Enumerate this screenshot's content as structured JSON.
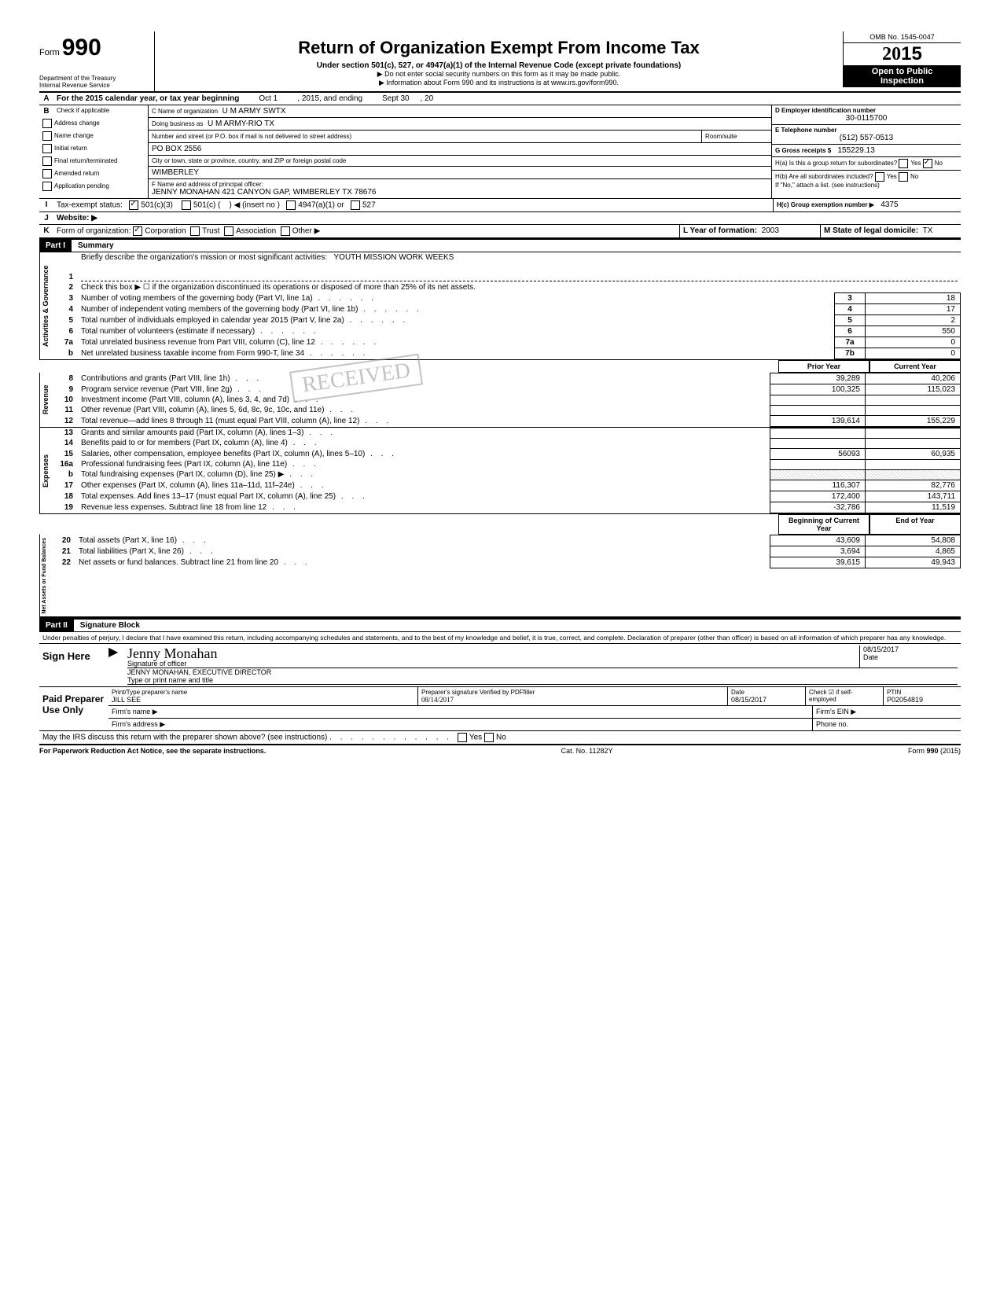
{
  "header": {
    "form_label": "Form",
    "form_number": "990",
    "dept1": "Department of the Treasury",
    "dept2": "Internal Revenue Service",
    "title": "Return of Organization Exempt From Income Tax",
    "subtitle": "Under section 501(c), 527, or 4947(a)(1) of the Internal Revenue Code (except private foundations)",
    "note1": "▶ Do not enter social security numbers on this form as it may be made public.",
    "note2": "▶ Information about Form 990 and its instructions is at www.irs.gov/form990.",
    "omb": "OMB No. 1545-0047",
    "year": "2015",
    "open1": "Open to Public",
    "open2": "Inspection"
  },
  "rowA": {
    "text": "For the 2015 calendar year, or tax year beginning",
    "begin": "Oct 1",
    "mid": ", 2015, and ending",
    "end": "Sept 30",
    "tail": ", 20"
  },
  "rowB": {
    "label": "Check if applicable",
    "items": [
      "Address change",
      "Name change",
      "Initial return",
      "Final return/terminated",
      "Amended return",
      "Application pending"
    ]
  },
  "rowC": {
    "label_name": "C Name of organization",
    "name": "U M ARMY SWTX",
    "label_dba": "Doing business as",
    "dba": "U M ARMY-RIO TX",
    "label_addr": "Number and street (or P.O. box if mail is not delivered to street address)",
    "room_label": "Room/suite",
    "addr": "PO BOX 2556",
    "label_city": "City or town, state or province, country, and ZIP or foreign postal code",
    "city": "WIMBERLEY"
  },
  "rowD": {
    "label": "D Employer identification number",
    "value": "30-0115700"
  },
  "rowE": {
    "label": "E Telephone number",
    "value": "(512) 557-0513"
  },
  "rowG": {
    "label": "G Gross receipts $",
    "value": "155229.13"
  },
  "rowF": {
    "label": "F Name and address of principal officer:",
    "value": "JENNY MONAHAN 421 CANYON GAP, WIMBERLEY TX 78676"
  },
  "rowH": {
    "a": "H(a) Is this a group return for subordinates?",
    "b": "H(b) Are all subordinates included?",
    "note": "If \"No,\" attach a list. (see instructions)",
    "c_label": "H(c) Group exemption number ▶",
    "c_value": "4375",
    "yes": "Yes",
    "no": "No"
  },
  "rowI": {
    "label": "Tax-exempt status:",
    "opts": [
      "501(c)(3)",
      "501(c) (",
      "◀ (insert no )",
      "4947(a)(1) or",
      "527"
    ]
  },
  "rowJ": {
    "label": "Website: ▶"
  },
  "rowK": {
    "label": "Form of organization:",
    "opts": [
      "Corporation",
      "Trust",
      "Association",
      "Other ▶"
    ],
    "L_label": "L Year of formation:",
    "L_value": "2003",
    "M_label": "M State of legal domicile:",
    "M_value": "TX"
  },
  "part1": {
    "hdr": "Part I",
    "title": "Summary"
  },
  "gov": {
    "l1_label": "Briefly describe the organization's mission or most significant activities:",
    "l1_value": "YOUTH MISSION WORK WEEKS",
    "l2": "Check this box ▶ ☐ if the organization discontinued its operations or disposed of more than 25% of its net assets.",
    "lines": [
      {
        "n": "3",
        "t": "Number of voting members of the governing body (Part VI, line 1a)",
        "b": "3",
        "v": "18"
      },
      {
        "n": "4",
        "t": "Number of independent voting members of the governing body (Part VI, line 1b)",
        "b": "4",
        "v": "17"
      },
      {
        "n": "5",
        "t": "Total number of individuals employed in calendar year 2015 (Part V, line 2a)",
        "b": "5",
        "v": "2"
      },
      {
        "n": "6",
        "t": "Total number of volunteers (estimate if necessary)",
        "b": "6",
        "v": "550"
      },
      {
        "n": "7a",
        "t": "Total unrelated business revenue from Part VIII, column (C), line 12",
        "b": "7a",
        "v": "0"
      },
      {
        "n": "b",
        "t": "Net unrelated business taxable income from Form 990-T, line 34",
        "b": "7b",
        "v": "0"
      }
    ]
  },
  "cols": {
    "prior": "Prior Year",
    "current": "Current Year",
    "begin": "Beginning of Current Year",
    "end": "End of Year"
  },
  "rev": [
    {
      "n": "8",
      "t": "Contributions and grants (Part VIII, line 1h)",
      "p": "39,289",
      "c": "40,206"
    },
    {
      "n": "9",
      "t": "Program service revenue (Part VIII, line 2g)",
      "p": "100,325",
      "c": "115,023"
    },
    {
      "n": "10",
      "t": "Investment income (Part VIII, column (A), lines 3, 4, and 7d)",
      "p": "",
      "c": ""
    },
    {
      "n": "11",
      "t": "Other revenue (Part VIII, column (A), lines 5, 6d, 8c, 9c, 10c, and 11e)",
      "p": "",
      "c": ""
    },
    {
      "n": "12",
      "t": "Total revenue—add lines 8 through 11 (must equal Part VIII, column (A), line 12)",
      "p": "139,614",
      "c": "155,229"
    }
  ],
  "exp": [
    {
      "n": "13",
      "t": "Grants and similar amounts paid (Part IX, column (A), lines 1–3)",
      "p": "",
      "c": ""
    },
    {
      "n": "14",
      "t": "Benefits paid to or for members (Part IX, column (A), line 4)",
      "p": "",
      "c": ""
    },
    {
      "n": "15",
      "t": "Salaries, other compensation, employee benefits (Part IX, column (A), lines 5–10)",
      "p": "56093",
      "c": "60,935"
    },
    {
      "n": "16a",
      "t": "Professional fundraising fees (Part IX, column (A), line 11e)",
      "p": "",
      "c": ""
    },
    {
      "n": "b",
      "t": "Total fundraising expenses (Part IX, column (D), line 25) ▶",
      "p": "shaded",
      "c": "shaded"
    },
    {
      "n": "17",
      "t": "Other expenses (Part IX, column (A), lines 11a–11d, 11f–24e)",
      "p": "116,307",
      "c": "82,776"
    },
    {
      "n": "18",
      "t": "Total expenses. Add lines 13–17 (must equal Part IX, column (A), line 25)",
      "p": "172,400",
      "c": "143,711"
    },
    {
      "n": "19",
      "t": "Revenue less expenses. Subtract line 18 from line 12",
      "p": "-32,786",
      "c": "11,519"
    }
  ],
  "net": [
    {
      "n": "20",
      "t": "Total assets (Part X, line 16)",
      "p": "43,609",
      "c": "54,808"
    },
    {
      "n": "21",
      "t": "Total liabilities (Part X, line 26)",
      "p": "3,694",
      "c": "4,865"
    },
    {
      "n": "22",
      "t": "Net assets or fund balances. Subtract line 21 from line 20",
      "p": "39,615",
      "c": "49,943"
    }
  ],
  "part2": {
    "hdr": "Part II",
    "title": "Signature Block"
  },
  "sig": {
    "perjury": "Under penalties of perjury, I declare that I have examined this return, including accompanying schedules and statements, and to the best of my knowledge and belief, it is true, correct, and complete. Declaration of preparer (other than officer) is based on all information of which preparer has any knowledge.",
    "sign_here": "Sign Here",
    "sig_officer": "Signature of officer",
    "date_label": "Date",
    "date_value": "08/15/2017",
    "name_title": "JENNY MONAHAN, EXECUTIVE DIRECTOR",
    "type_name": "Type or print name and title",
    "paid": "Paid Preparer Use Only",
    "prep_name_label": "Print/Type preparer's name",
    "prep_name": "JILL SEE",
    "prep_sig_label": "Preparer's signature",
    "prep_sig_note": "Verified by PDFfiller",
    "prep_sig_date": "08/14/2017",
    "prep_date": "08/15/2017",
    "check_if": "Check ☑ if self-employed",
    "ptin_label": "PTIN",
    "ptin": "P02054819",
    "firm_name": "Firm's name ▶",
    "firm_ein": "Firm's EIN ▶",
    "firm_addr": "Firm's address ▶",
    "phone": "Phone no.",
    "discuss": "May the IRS discuss this return with the preparer shown above? (see instructions)",
    "yes": "Yes",
    "no": "No"
  },
  "footer": {
    "left": "For Paperwork Reduction Act Notice, see the separate instructions.",
    "mid": "Cat. No. 11282Y",
    "right": "Form 990 (2015)"
  },
  "vert_labels": {
    "gov": "Activities & Governance",
    "rev": "Revenue",
    "exp": "Expenses",
    "net": "Net Assets or Fund Balances"
  },
  "stamp": "RECEIVED"
}
